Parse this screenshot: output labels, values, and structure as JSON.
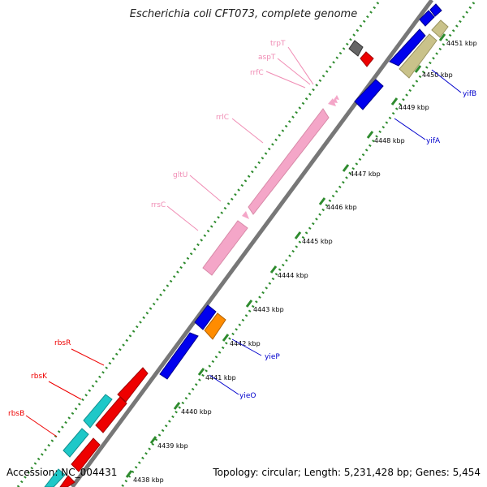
{
  "title": "Escherichia coli CFT073, complete genome",
  "footer": {
    "accession": "Accession: NC_004431",
    "topology": "Topology: circular; Length: 5,231,428 bp; Genes: 5,454"
  },
  "colors": {
    "background": "#ffffff",
    "backbone": "#777777",
    "ticks": "#2e8b2e",
    "rna": "#f4a6c8",
    "forward_gene": "#ff0000",
    "reverse_gene": "#0000ee",
    "cyan_gene": "#1ec8c8",
    "olive_gene": "#c9c28a",
    "orange_gene": "#ff8c00",
    "grey_gene": "#666666",
    "red_label": "#ee0000",
    "blue_label": "#0000cc",
    "pink_label": "#f08cb4"
  },
  "ticks": [
    "4438 kbp",
    "4439 kbp",
    "4440 kbp",
    "4441 kbp",
    "4442 kbp",
    "4443 kbp",
    "4444 kbp",
    "4445 kbp",
    "4446 kbp",
    "4447 kbp",
    "4448 kbp",
    "4449 kbp",
    "4450 kbp",
    "4451 kbp"
  ],
  "labels": {
    "red": [
      "rbsR",
      "rbsK",
      "rbsB"
    ],
    "blue": [
      "yieP",
      "yieO",
      "yifA",
      "yifB"
    ],
    "pink": [
      "trpT",
      "aspT",
      "rrfC",
      "rrlC",
      "gltU",
      "rrsC"
    ]
  }
}
